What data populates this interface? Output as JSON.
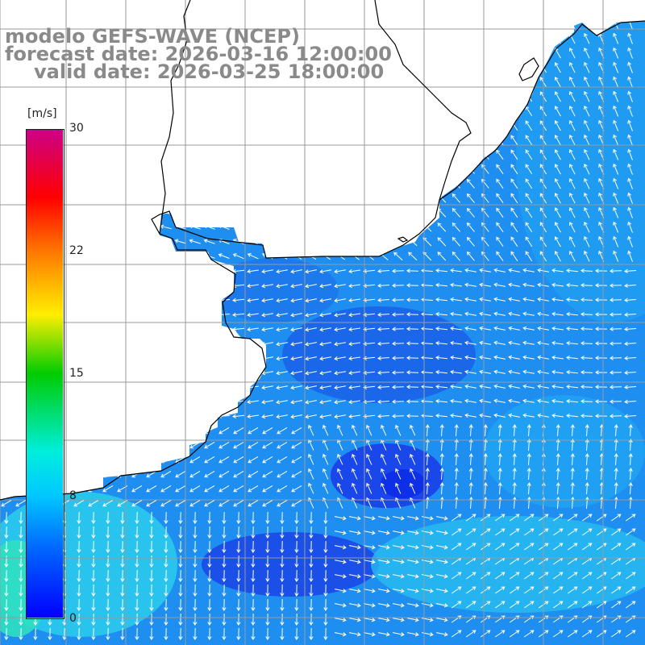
{
  "title": {
    "line1": "modelo GEFS-WAVE (NCEP)",
    "line2": "forecast date: 2026-03-16 12:00:00",
    "line3": "valid date: 2026-03-25 18:00:00"
  },
  "colorbar": {
    "unit": "[m/s]",
    "ticks": [
      "30",
      "22",
      "15",
      "8",
      "0"
    ],
    "range": [
      0,
      30
    ],
    "stops": [
      "#0000ff",
      "#00aaff",
      "#00eeee",
      "#00dd00",
      "#ffff00",
      "#ff9900",
      "#ff0000",
      "#cc0088"
    ]
  },
  "map": {
    "ocean_colors": {
      "calm": "#1a3fe8",
      "low": "#1f7fec",
      "mid": "#1ea2ee",
      "high": "#25c6f0",
      "coast_low": "#2d8ee6"
    },
    "land_color": "#ffffff",
    "grid_color": "#9a9a9a",
    "coastline_color": "#000000",
    "arrow_color": "#ffffff"
  }
}
